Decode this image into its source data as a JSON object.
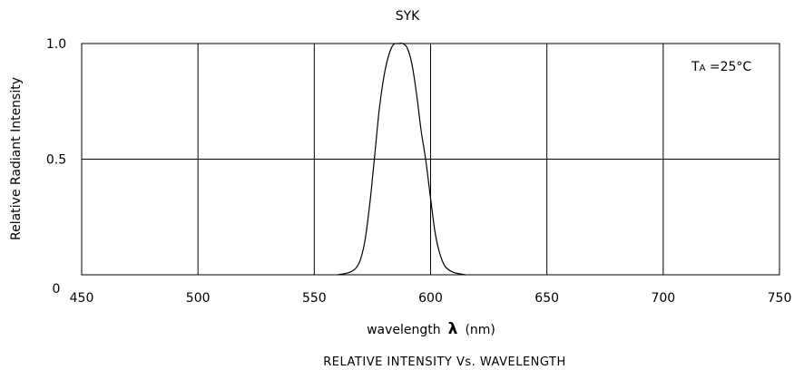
{
  "chart_data": {
    "type": "line",
    "title": "SYK",
    "caption": "RELATIVE INTENSITY Vs. WAVELENGTH",
    "xlabel_prefix": "wavelength",
    "xlabel_symbol": "λ",
    "xlabel_unit": "(nm)",
    "ylabel": "Relative Radiant Intensity",
    "annotation_main": "T",
    "annotation_sub": "A",
    "annotation_rest": " =25°C",
    "xlim": [
      450,
      750
    ],
    "ylim": [
      0,
      1.0
    ],
    "xticks": [
      450,
      500,
      550,
      600,
      650,
      700,
      750
    ],
    "xtick_labels": [
      "450",
      "500",
      "550",
      "600",
      "650",
      "700",
      "750"
    ],
    "yticks": [
      0,
      0.5,
      1.0
    ],
    "ytick_labels": [
      "0",
      "0.5",
      "1.0"
    ],
    "grid": true,
    "series": [
      {
        "x": [
          560,
          565,
          568,
          570,
          572,
          574,
          576,
          578,
          580,
          582,
          584,
          586,
          588,
          590,
          592,
          594,
          596,
          598,
          600,
          602,
          604,
          606,
          608,
          610,
          612,
          615
        ],
        "y": [
          0.0,
          0.01,
          0.03,
          0.07,
          0.16,
          0.32,
          0.52,
          0.72,
          0.86,
          0.95,
          0.995,
          1.0,
          1.0,
          0.98,
          0.91,
          0.78,
          0.62,
          0.49,
          0.33,
          0.18,
          0.09,
          0.04,
          0.02,
          0.01,
          0.005,
          0.0
        ]
      }
    ]
  }
}
